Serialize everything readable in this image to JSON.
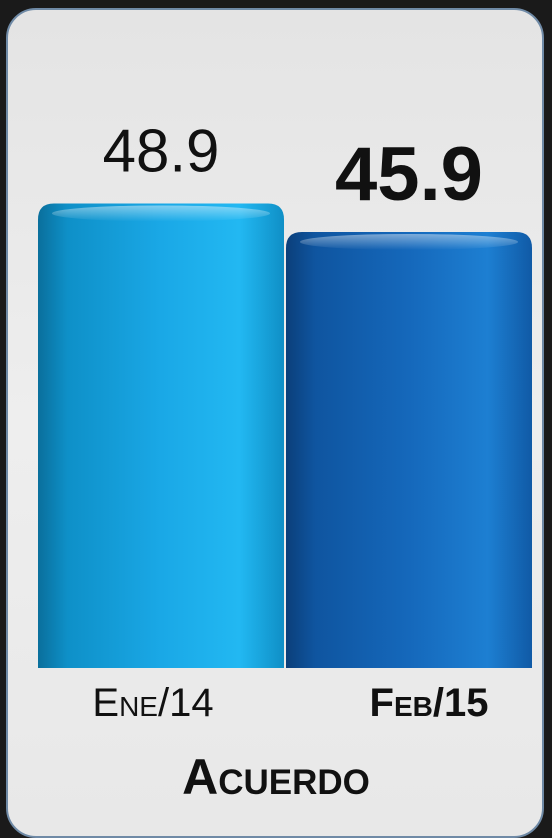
{
  "chart_data": {
    "type": "bar",
    "title": "Acuerdo",
    "categories": [
      "Ene/14",
      "Feb/15"
    ],
    "values": [
      48.9,
      45.9
    ],
    "value_labels": [
      "48.9",
      "45.9"
    ],
    "highlight_index": 1,
    "colors": [
      "#12a9e6",
      "#1565b8"
    ],
    "ylim": [
      0,
      50
    ]
  }
}
